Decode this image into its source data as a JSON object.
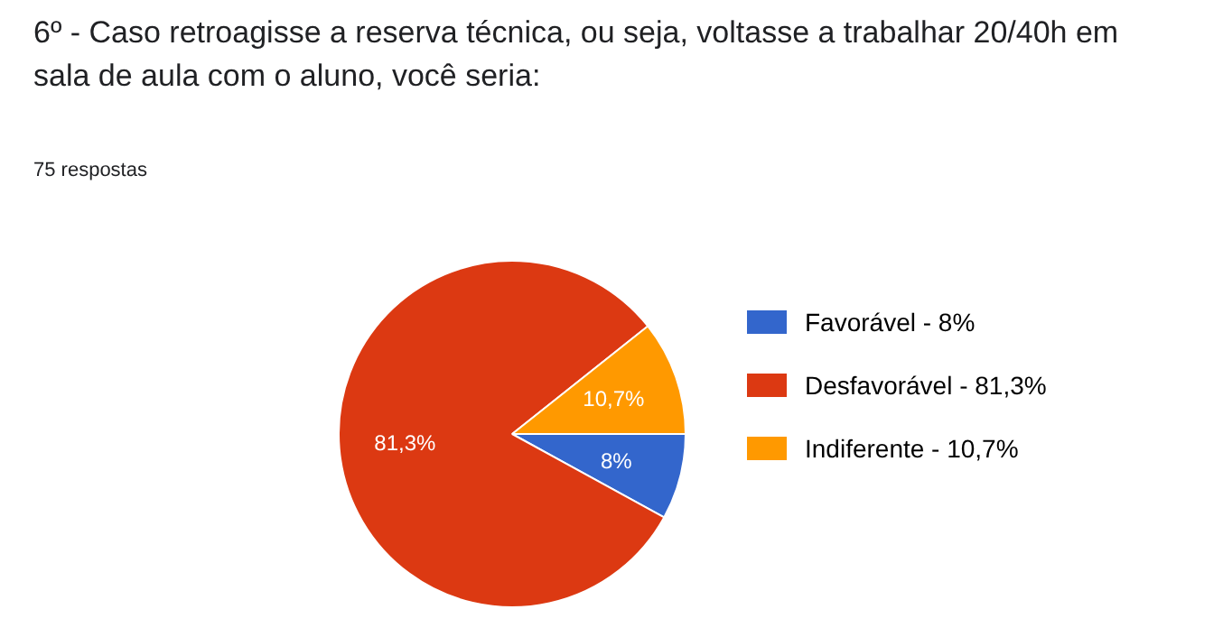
{
  "chart_data": {
    "type": "pie",
    "title": "6º -  Caso retroagisse  a reserva técnica, ou seja, voltasse a trabalhar 20/40h em sala de aula com o aluno, você seria:",
    "subtitle": "75 respostas",
    "categories": [
      "Favorável",
      "Desfavorável",
      "Indiferente"
    ],
    "values": [
      8,
      81.3,
      10.7
    ],
    "value_labels": [
      "8%",
      "81,3%",
      "10,7%"
    ],
    "colors": [
      "#3366cc",
      "#dc3912",
      "#ff9900"
    ],
    "legend": "right"
  }
}
